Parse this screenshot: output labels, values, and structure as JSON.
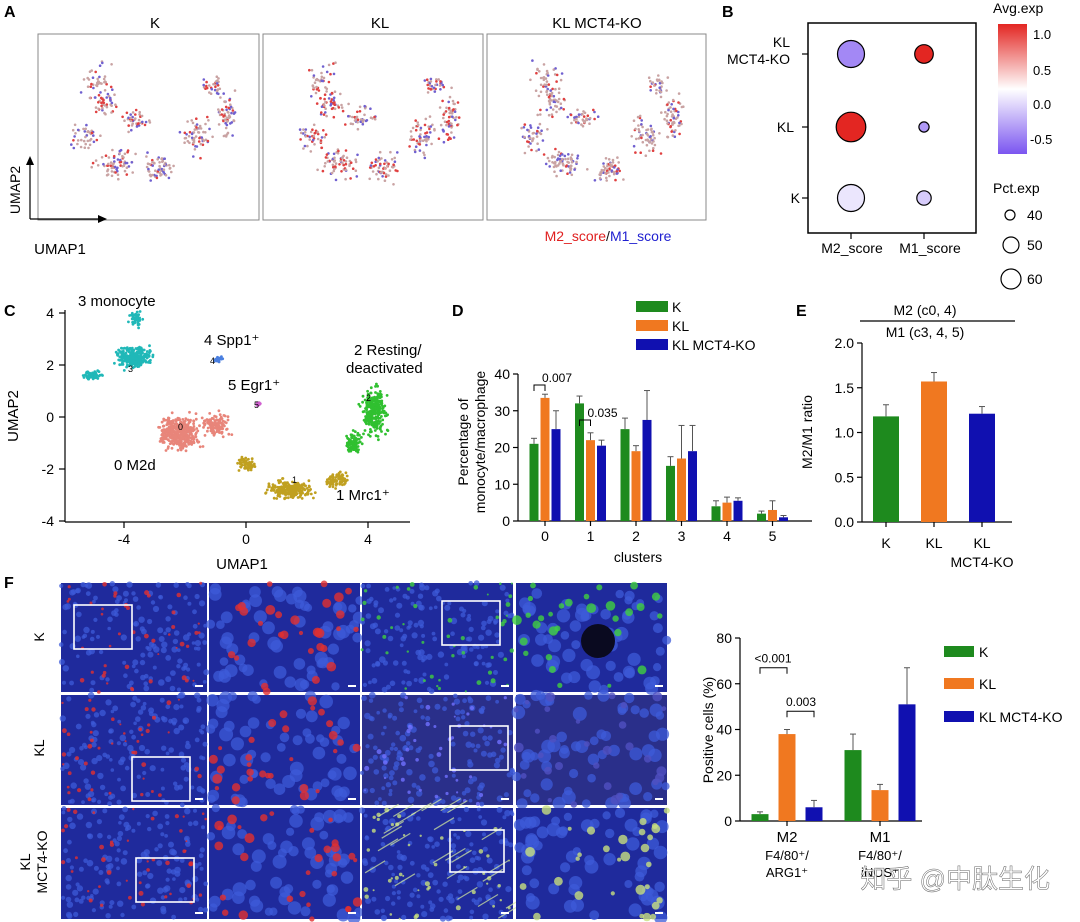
{
  "panels": {
    "a": "A",
    "b": "B",
    "c": "C",
    "d": "D",
    "e": "E",
    "f": "F"
  },
  "colors": {
    "k": "#1e8a1e",
    "kl": "#f07820",
    "ko": "#1010b0",
    "m2": "#e02020",
    "m1": "#2020d0",
    "bg": "#ffffff"
  },
  "panel_a": {
    "titles": [
      "K",
      "KL",
      "KL MCT4-KO"
    ],
    "xlabel": "UMAP1",
    "ylabel": "UMAP2",
    "legend_m2": "M2_score",
    "legend_sep": "/",
    "legend_m1": "M1_score"
  },
  "panel_b": {
    "rows": [
      "KL MCT4-KO",
      "KL",
      "K"
    ],
    "row_kl_mct4_line1": "KL",
    "row_kl_mct4_line2": "MCT4-KO",
    "cols": [
      "M2_score",
      "M1_score"
    ],
    "avg_title": "Avg.exp",
    "avg_ticks": [
      "1.0",
      "0.5",
      "0.0",
      "-0.5"
    ],
    "pct_title": "Pct.exp",
    "pct_sizes": [
      "40",
      "50",
      "60"
    ],
    "dot_data": [
      {
        "row": "KL MCT4-KO",
        "col": "M2_score",
        "avg": -0.7,
        "pct": 55
      },
      {
        "row": "KL MCT4-KO",
        "col": "M1_score",
        "avg": 1.0,
        "pct": 45
      },
      {
        "row": "KL",
        "col": "M2_score",
        "avg": 1.0,
        "pct": 58
      },
      {
        "row": "KL",
        "col": "M1_score",
        "avg": -0.6,
        "pct": 35
      },
      {
        "row": "K",
        "col": "M2_score",
        "avg": -0.15,
        "pct": 55
      },
      {
        "row": "K",
        "col": "M1_score",
        "avg": -0.3,
        "pct": 40
      }
    ]
  },
  "panel_c": {
    "xlabel": "UMAP1",
    "ylabel": "UMAP2",
    "xticks": [
      "-4",
      "0",
      "4"
    ],
    "yticks": [
      "4",
      "2",
      "0",
      "-2",
      "-4"
    ],
    "clusters": [
      {
        "id": "0",
        "label": "0 M2d",
        "color": "#e8857a"
      },
      {
        "id": "1",
        "label": "1 Mrc1⁺",
        "color": "#c0a020"
      },
      {
        "id": "2",
        "label": "2 Resting/",
        "label2": "deactivated",
        "color": "#30c030"
      },
      {
        "id": "3",
        "label": "3 monocyte",
        "color": "#20b8b8"
      },
      {
        "id": "4",
        "label": "4 Spp1⁺",
        "color": "#4a7fe0"
      },
      {
        "id": "5",
        "label": "5 Egr1⁺",
        "color": "#d060d0"
      }
    ],
    "inner_labels": [
      "0",
      "1",
      "2",
      "3",
      "4",
      "5"
    ]
  },
  "chart_data": [
    {
      "type": "bar",
      "title": "",
      "xlabel": "clusters",
      "ylabel": "Percentage of monocyte/macrophage",
      "ylabel_line1": "Percentage of",
      "ylabel_line2": "monocyte/macrophage",
      "ylim": [
        0,
        40
      ],
      "yticks": [
        "0",
        "10",
        "20",
        "30",
        "40"
      ],
      "categories": [
        "0",
        "1",
        "2",
        "3",
        "4",
        "5"
      ],
      "series": [
        {
          "name": "K",
          "values": [
            21,
            32,
            25,
            15,
            4,
            2
          ],
          "errors": [
            1.5,
            2,
            3,
            2.5,
            1.5,
            0.7
          ]
        },
        {
          "name": "KL",
          "values": [
            33.5,
            22,
            19,
            17,
            5,
            3
          ],
          "errors": [
            1,
            2,
            1.5,
            9,
            1.5,
            2.5
          ]
        },
        {
          "name": "KL MCT4-KO",
          "values": [
            25,
            20.5,
            27.5,
            19,
            5.5,
            1
          ],
          "errors": [
            5,
            1.5,
            8,
            7,
            0.8,
            0.5
          ]
        }
      ],
      "annotations": [
        "0.007",
        "0.035"
      ],
      "legend": [
        "K",
        "KL",
        "KL MCT4-KO"
      ]
    },
    {
      "type": "bar",
      "title_line1": "M2 (c0, 4)",
      "title_line2": "M1 (c3, 4, 5)",
      "ylabel": "M2/M1 ratio",
      "ylim": [
        0,
        2.0
      ],
      "yticks": [
        "0.0",
        "0.5",
        "1.0",
        "1.5",
        "2.0"
      ],
      "categories": [
        "K",
        "KL",
        "KL MCT4-KO"
      ],
      "cat_line1": [
        "K",
        "KL",
        "KL"
      ],
      "cat_line2": [
        "",
        "",
        "MCT4-KO"
      ],
      "values": [
        1.18,
        1.57,
        1.21
      ],
      "errors": [
        0.13,
        0.1,
        0.08
      ]
    },
    {
      "type": "bar",
      "ylabel": "Positive cells (%)",
      "ylim": [
        0,
        80
      ],
      "yticks": [
        "0",
        "20",
        "40",
        "60",
        "80"
      ],
      "categories": [
        "M2",
        "M1"
      ],
      "cat_sub1": [
        "F4/80⁺/",
        "F4/80⁺/"
      ],
      "cat_sub2": [
        "ARG1⁺",
        "iNOS⁺"
      ],
      "series": [
        {
          "name": "K",
          "values": [
            3,
            31
          ],
          "errors": [
            1,
            7
          ]
        },
        {
          "name": "KL",
          "values": [
            38,
            13.5
          ],
          "errors": [
            2,
            2.5
          ]
        },
        {
          "name": "KL MCT4-KO",
          "values": [
            6,
            51
          ],
          "errors": [
            3,
            16
          ]
        }
      ],
      "annotations": [
        "<0.001",
        "0.003"
      ],
      "legend": [
        "K",
        "KL",
        "KL MCT4-KO"
      ]
    }
  ],
  "panel_f": {
    "rows": [
      "K",
      "KL",
      "KL MCT4-KO"
    ],
    "row_ko_line1": "KL",
    "row_ko_line2": "MCT4-KO"
  },
  "watermark": "知乎 @中肽生化"
}
